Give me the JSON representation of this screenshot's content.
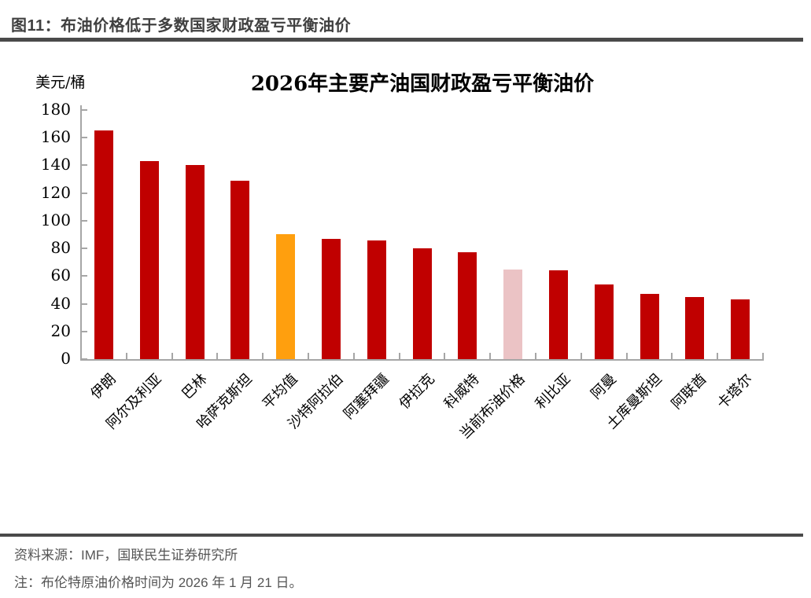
{
  "figure_header": {
    "title": "图11：布油价格低于多数国家财政盈亏平衡油价"
  },
  "chart_data": {
    "type": "bar",
    "title": "2026年主要产油国财政盈亏平衡油价",
    "unit_label": "美元/桶",
    "xlabel": "",
    "ylabel": "美元/桶",
    "ylim": [
      0,
      180
    ],
    "ytick_step": 20,
    "grid": false,
    "legend_position": "none",
    "xlabel_rotation_deg": 45,
    "categories": [
      "伊朗",
      "阿尔及利亚",
      "巴林",
      "哈萨克斯坦",
      "平均值",
      "沙特阿拉伯",
      "阿塞拜疆",
      "伊拉克",
      "科威特",
      "当前布油价格",
      "利比亚",
      "阿曼",
      "土库曼斯坦",
      "阿联酋",
      "卡塔尔"
    ],
    "values": [
      165,
      143,
      140,
      129,
      90,
      87,
      86,
      80,
      77,
      65,
      64,
      54,
      47,
      45,
      43
    ],
    "bar_colors": [
      "#C00000",
      "#C00000",
      "#C00000",
      "#C00000",
      "#FF9F0E",
      "#C00000",
      "#C00000",
      "#C00000",
      "#C00000",
      "#EBC3C5",
      "#C00000",
      "#C00000",
      "#C00000",
      "#C00000",
      "#C00000"
    ],
    "highlighted_bars": {
      "平均值": "#FF9F0E",
      "当前布油价格": "#EBC3C5"
    }
  },
  "colors": {
    "bar_default": "#C00000",
    "bar_average": "#FF9F0E",
    "bar_current_brent": "#EBC3C5",
    "axis": "#A6A6A6",
    "header_text": "#404040",
    "rule": "#4A4A4A",
    "footer_text": "#555555"
  },
  "footer": {
    "source": "资料来源：IMF，国联民生证券研究所",
    "note": "注：布伦特原油价格时间为 2026 年 1 月 21 日。"
  }
}
